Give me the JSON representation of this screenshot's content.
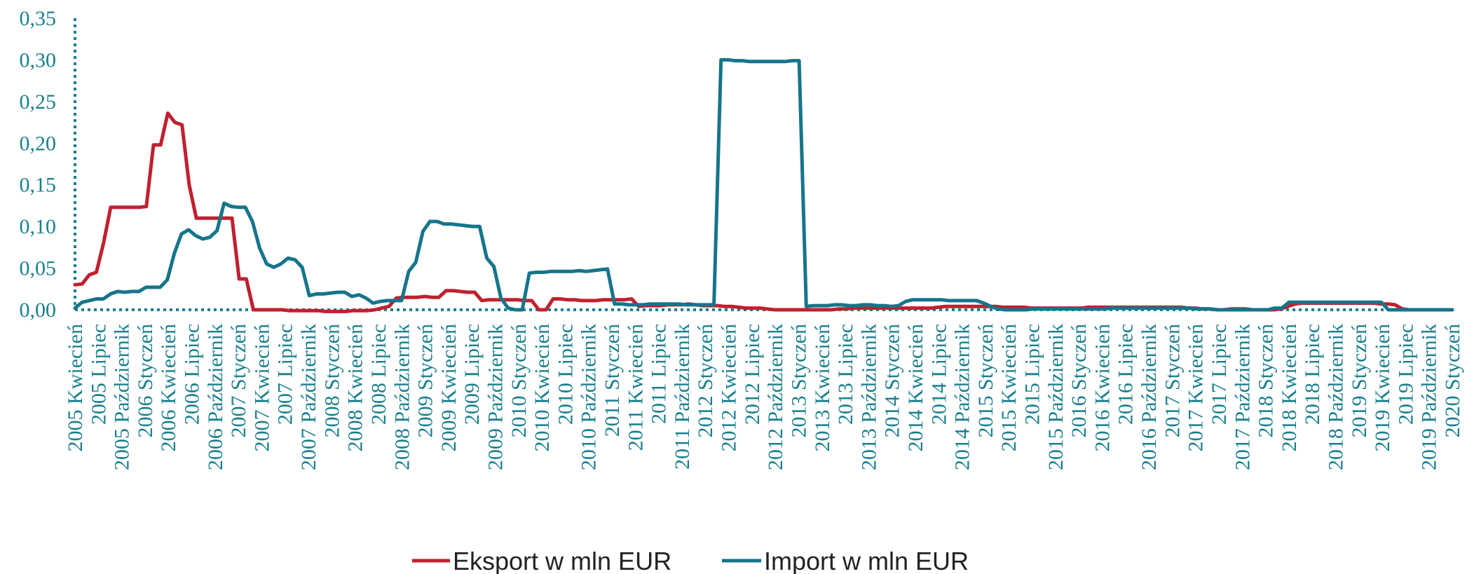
{
  "chart_data": {
    "type": "line",
    "title": "",
    "xlabel": "",
    "ylabel": "",
    "ylim": [
      0,
      0.35
    ],
    "yticks": [
      "0,00",
      "0,05",
      "0,10",
      "0,15",
      "0,20",
      "0,25",
      "0,30",
      "0,35"
    ],
    "x_labels": [
      "2005 Kwiecień",
      "2005 Lipiec",
      "2005 Październik",
      "2006 Styczeń",
      "2006 Kwiecień",
      "2006 Lipiec",
      "2006 Październik",
      "2007 Styczeń",
      "2007 Kwiecień",
      "2007 Lipiec",
      "2007 Październik",
      "2008 Styczeń",
      "2008 Kwiecień",
      "2008 Lipiec",
      "2008 Październik",
      "2009 Styczeń",
      "2009 Kwiecień",
      "2009 Lipiec",
      "2009 Październik",
      "2010 Styczeń",
      "2010 Kwiecień",
      "2010 Lipiec",
      "2010 Październik",
      "2011 Styczeń",
      "2011 Kwiecień",
      "2011 Lipiec",
      "2011 Październik",
      "2012 Styczeń",
      "2012 Kwiecień",
      "2012 Lipiec",
      "2012 Październik",
      "2013 Styczeń",
      "2013 Kwiecień",
      "2013 Lipiec",
      "2013 Październik",
      "2014 Styczeń",
      "2014 Kwiecień",
      "2014 Lipiec",
      "2014 Październik",
      "2015 Styczeń",
      "2015 Kwiecień",
      "2015 Lipiec",
      "2015 Październik",
      "2016 Styczeń",
      "2016 Kwiecień",
      "2016 Lipiec",
      "2016 Październik",
      "2017 Styczeń",
      "2017 Kwiecień",
      "2017 Lipiec",
      "2017 Październik",
      "2018 Styczeń",
      "2018 Kwiecień",
      "2018 Lipiec",
      "2018 Październik",
      "2019 Styczeń",
      "2019 Kwiecień",
      "2019 Lipiec",
      "2019 Październik",
      "2020 Styczeń"
    ],
    "series": [
      {
        "name": "Eksport w mln EUR",
        "color": "#c0202f",
        "values": [
          0.03,
          0.031,
          0.042,
          0.045,
          0.08,
          0.123,
          0.123,
          0.123,
          0.123,
          0.123,
          0.124,
          0.198,
          0.198,
          0.236,
          0.225,
          0.222,
          0.15,
          0.11,
          0.11,
          0.11,
          0.11,
          0.11,
          0.11,
          0.037,
          0.037,
          0.0,
          0.0,
          0.0,
          0.0,
          0.0,
          -0.001,
          -0.001,
          -0.001,
          -0.001,
          -0.001,
          -0.002,
          -0.002,
          -0.002,
          -0.002,
          -0.001,
          -0.001,
          -0.001,
          0.0,
          0.002,
          0.004,
          0.014,
          0.015,
          0.015,
          0.015,
          0.016,
          0.015,
          0.015,
          0.023,
          0.023,
          0.022,
          0.021,
          0.021,
          0.011,
          0.012,
          0.012,
          0.012,
          0.012,
          0.012,
          0.011,
          0.011,
          0.0,
          0.0,
          0.013,
          0.013,
          0.012,
          0.012,
          0.011,
          0.011,
          0.011,
          0.012,
          0.012,
          0.012,
          0.012,
          0.013,
          0.004,
          0.005,
          0.005,
          0.005,
          0.006,
          0.006,
          0.006,
          0.007,
          0.006,
          0.005,
          0.005,
          0.005,
          0.004,
          0.004,
          0.003,
          0.002,
          0.002,
          0.002,
          0.001,
          0.0,
          0.0,
          0.0,
          0.0,
          0.0,
          0.0,
          0.0,
          0.0,
          0.0,
          0.001,
          0.001,
          0.002,
          0.002,
          0.002,
          0.002,
          0.002,
          0.002,
          0.002,
          0.002,
          0.002,
          0.002,
          0.002,
          0.002,
          0.003,
          0.004,
          0.004,
          0.004,
          0.004,
          0.004,
          0.004,
          0.004,
          0.004,
          0.003,
          0.003,
          0.003,
          0.003,
          0.002,
          0.002,
          0.002,
          0.002,
          0.002,
          0.002,
          0.002,
          0.002,
          0.003,
          0.003,
          0.003,
          0.003,
          0.003,
          0.003,
          0.003,
          0.003,
          0.003,
          0.003,
          0.003,
          0.003,
          0.003,
          0.003,
          0.002,
          0.002,
          0.001,
          0.001,
          0.0,
          0.0,
          0.001,
          0.001,
          0.001,
          0.0,
          0.0,
          0.0,
          0.0,
          0.001,
          0.004,
          0.007,
          0.008,
          0.008,
          0.008,
          0.008,
          0.008,
          0.008,
          0.008,
          0.008,
          0.008,
          0.008,
          0.008,
          0.007,
          0.007,
          0.006,
          0.001,
          0.0,
          0.0,
          0.0,
          0.0,
          0.0,
          0.0,
          0.0
        ]
      },
      {
        "name": "Import w mln EUR",
        "color": "#16758a",
        "values": [
          0.002,
          0.009,
          0.011,
          0.013,
          0.013,
          0.019,
          0.022,
          0.021,
          0.022,
          0.022,
          0.027,
          0.027,
          0.027,
          0.036,
          0.068,
          0.091,
          0.096,
          0.089,
          0.085,
          0.087,
          0.095,
          0.128,
          0.124,
          0.123,
          0.123,
          0.106,
          0.074,
          0.055,
          0.051,
          0.055,
          0.062,
          0.06,
          0.051,
          0.017,
          0.019,
          0.019,
          0.02,
          0.021,
          0.021,
          0.016,
          0.018,
          0.014,
          0.008,
          0.01,
          0.011,
          0.011,
          0.011,
          0.046,
          0.057,
          0.094,
          0.106,
          0.106,
          0.103,
          0.103,
          0.102,
          0.101,
          0.1,
          0.1,
          0.062,
          0.052,
          0.014,
          0.002,
          0.0,
          0.0,
          0.044,
          0.045,
          0.045,
          0.046,
          0.046,
          0.046,
          0.046,
          0.047,
          0.046,
          0.047,
          0.048,
          0.049,
          0.007,
          0.007,
          0.006,
          0.006,
          0.006,
          0.007,
          0.007,
          0.007,
          0.007,
          0.007,
          0.006,
          0.006,
          0.006,
          0.006,
          0.006,
          0.3,
          0.3,
          0.299,
          0.299,
          0.298,
          0.298,
          0.298,
          0.298,
          0.298,
          0.298,
          0.299,
          0.299,
          0.004,
          0.005,
          0.005,
          0.005,
          0.006,
          0.006,
          0.005,
          0.005,
          0.006,
          0.006,
          0.005,
          0.005,
          0.004,
          0.005,
          0.01,
          0.012,
          0.012,
          0.012,
          0.012,
          0.012,
          0.011,
          0.011,
          0.011,
          0.011,
          0.011,
          0.008,
          0.004,
          0.001,
          0.0,
          0.0,
          0.0,
          0.0,
          0.001,
          0.001,
          0.001,
          0.001,
          0.001,
          0.001,
          0.001,
          0.001,
          0.001,
          0.001,
          0.001,
          0.002,
          0.002,
          0.002,
          0.002,
          0.002,
          0.002,
          0.002,
          0.002,
          0.002,
          0.002,
          0.002,
          0.002,
          0.001,
          0.001,
          0.001,
          0.0,
          0.0,
          0.0,
          0.0,
          0.0,
          0.0,
          0.0,
          0.0,
          0.002,
          0.002,
          0.009,
          0.009,
          0.009,
          0.009,
          0.009,
          0.009,
          0.009,
          0.009,
          0.009,
          0.009,
          0.009,
          0.009,
          0.009,
          0.009,
          0.0,
          0.0,
          0.0,
          0.0,
          0.0,
          0.0,
          0.0,
          0.0,
          0.0,
          0.0
        ]
      }
    ],
    "legend_position": "bottom",
    "grid": false
  }
}
